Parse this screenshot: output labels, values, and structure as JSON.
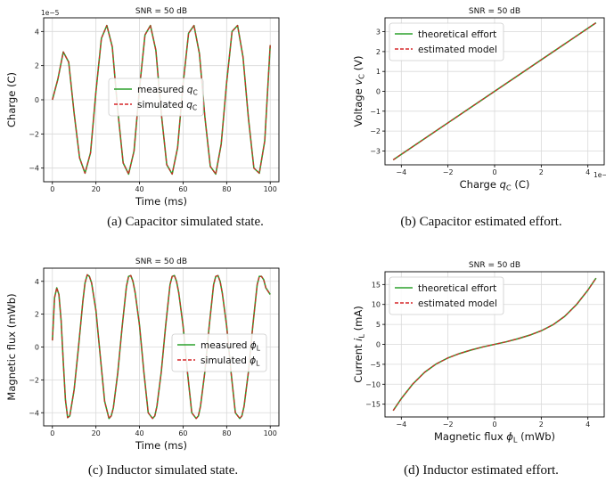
{
  "chart_data": [
    {
      "id": "a",
      "type": "line",
      "title": "SNR = 50 dB",
      "xlabel": "Time (ms)",
      "ylabel": "Charge (C)",
      "scale_note": "1e−5",
      "xlim": [
        -4,
        104
      ],
      "ylim": [
        -4.8,
        4.8
      ],
      "xticks": [
        0,
        20,
        40,
        60,
        80,
        100
      ],
      "yticks": [
        -4,
        -2,
        0,
        2,
        4
      ],
      "xtick_labels": [
        "0",
        "20",
        "40",
        "60",
        "80",
        "100"
      ],
      "ytick_labels": [
        "−4",
        "−2",
        "0",
        "2",
        "4"
      ],
      "grid": true,
      "legend_position": "center",
      "series": [
        {
          "name_base": "measured ",
          "name_sym": "q",
          "name_sub": "C",
          "color": "#2ca02c",
          "style": "solid",
          "x": [
            0,
            2.5,
            5,
            7.5,
            10,
            12.5,
            15,
            17.5,
            20,
            22.5,
            25,
            27.5,
            30,
            32.5,
            35,
            37.5,
            40,
            42.5,
            45,
            47.5,
            50,
            52.5,
            55,
            57.5,
            60,
            62.5,
            65,
            67.5,
            70,
            72.5,
            75,
            77.5,
            80,
            82.5,
            85,
            87.5,
            90,
            92.5,
            95,
            97.5,
            100
          ],
          "y": [
            0,
            1.2,
            2.8,
            2.2,
            -0.8,
            -3.4,
            -4.3,
            -3.1,
            0.5,
            3.6,
            4.35,
            3.1,
            -0.6,
            -3.7,
            -4.35,
            -3.0,
            0.7,
            3.8,
            4.35,
            2.9,
            -0.8,
            -3.8,
            -4.35,
            -2.8,
            0.9,
            3.9,
            4.35,
            2.7,
            -1.0,
            -3.9,
            -4.35,
            -2.6,
            1.0,
            4.0,
            4.35,
            2.5,
            -1.1,
            -4.0,
            -4.3,
            -2.4,
            3.2
          ]
        },
        {
          "name_base": "simulated ",
          "name_sym": "q",
          "name_sub": "C",
          "color": "#d62728",
          "style": "dashed",
          "same_as": 0
        }
      ]
    },
    {
      "id": "b",
      "type": "line",
      "title": "SNR = 50 dB",
      "xlabel_base": "Charge ",
      "xlabel_sym": "q",
      "xlabel_sub": "C",
      "xlabel_unit": " (C)",
      "ylabel_base": "Voltage ",
      "ylabel_sym": "v",
      "ylabel_sub": "C",
      "ylabel_unit": " (V)",
      "scale_note": "1e−5",
      "xlim": [
        -4.7,
        4.7
      ],
      "ylim": [
        -3.7,
        3.7
      ],
      "xticks": [
        -4,
        -2,
        0,
        2,
        4
      ],
      "yticks": [
        -3,
        -2,
        -1,
        0,
        1,
        2,
        3
      ],
      "xtick_labels": [
        "−4",
        "−2",
        "0",
        "2",
        "4"
      ],
      "ytick_labels": [
        "−3",
        "−2",
        "−1",
        "0",
        "1",
        "2",
        "3"
      ],
      "grid": true,
      "legend_position": "top-left",
      "series": [
        {
          "name": "theoretical effort",
          "color": "#2ca02c",
          "style": "solid",
          "x": [
            -4.35,
            4.35
          ],
          "y": [
            -3.45,
            3.45
          ]
        },
        {
          "name": "estimated model",
          "color": "#d62728",
          "style": "dashed",
          "x": [
            -4.35,
            4.35
          ],
          "y": [
            -3.45,
            3.45
          ]
        }
      ]
    },
    {
      "id": "c",
      "type": "line",
      "title": "SNR = 50 dB",
      "xlabel": "Time (ms)",
      "ylabel": "Magnetic flux (mWb)",
      "xlim": [
        -4,
        104
      ],
      "ylim": [
        -4.8,
        4.8
      ],
      "xticks": [
        0,
        20,
        40,
        60,
        80,
        100
      ],
      "yticks": [
        -4,
        -2,
        0,
        2,
        4
      ],
      "xtick_labels": [
        "0",
        "20",
        "40",
        "60",
        "80",
        "100"
      ],
      "ytick_labels": [
        "−4",
        "−2",
        "0",
        "2",
        "4"
      ],
      "grid": true,
      "legend_position": "center-right",
      "series": [
        {
          "name_base": "measured ",
          "name_sym": "ϕ",
          "name_sub": "L",
          "color": "#2ca02c",
          "style": "solid",
          "x": [
            0,
            1,
            2,
            3,
            4,
            5,
            6,
            7,
            8,
            10,
            12,
            14,
            15,
            16,
            17,
            18,
            20,
            22,
            24,
            26,
            27,
            28,
            30,
            32,
            34,
            35,
            36,
            37,
            38,
            40,
            42,
            44,
            46,
            47,
            48,
            50,
            52,
            54,
            55,
            56,
            57,
            58,
            60,
            62,
            64,
            66,
            67,
            68,
            70,
            72,
            74,
            75,
            76,
            77,
            78,
            80,
            82,
            84,
            86,
            87,
            88,
            90,
            92,
            94,
            95,
            96,
            97,
            98,
            100
          ],
          "y": [
            0.4,
            3.0,
            3.6,
            3.2,
            1.6,
            -0.9,
            -3.2,
            -4.3,
            -4.2,
            -2.6,
            0.0,
            2.8,
            3.9,
            4.4,
            4.3,
            3.9,
            2.2,
            -0.6,
            -3.3,
            -4.35,
            -4.2,
            -3.7,
            -1.6,
            1.2,
            3.7,
            4.3,
            4.35,
            4.0,
            3.3,
            1.3,
            -1.5,
            -4.0,
            -4.35,
            -4.2,
            -3.6,
            -1.5,
            1.3,
            3.8,
            4.3,
            4.35,
            4.0,
            3.3,
            1.3,
            -1.5,
            -4.0,
            -4.35,
            -4.2,
            -3.6,
            -1.5,
            1.3,
            3.8,
            4.3,
            4.35,
            4.0,
            3.3,
            1.3,
            -1.5,
            -4.0,
            -4.35,
            -4.2,
            -3.6,
            -1.5,
            1.3,
            3.8,
            4.3,
            4.3,
            4.1,
            3.6,
            3.2
          ]
        },
        {
          "name_base": "simulated ",
          "name_sym": "ϕ",
          "name_sub": "L",
          "color": "#d62728",
          "style": "dashed",
          "same_as": 0
        }
      ]
    },
    {
      "id": "d",
      "type": "line",
      "title": "SNR = 50 dB",
      "xlabel_base": "Magnetic flux ",
      "xlabel_sym": "ϕ",
      "xlabel_sub": "L",
      "xlabel_unit": " (mWb)",
      "ylabel_base": "Current ",
      "ylabel_sym": "i",
      "ylabel_sub": "L",
      "ylabel_unit": " (mA)",
      "xlim": [
        -4.7,
        4.7
      ],
      "ylim": [
        -18.2,
        18.2
      ],
      "xticks": [
        -4,
        -2,
        0,
        2,
        4
      ],
      "yticks": [
        -15,
        -10,
        -5,
        0,
        5,
        10,
        15
      ],
      "xtick_labels": [
        "−4",
        "−2",
        "0",
        "2",
        "4"
      ],
      "ytick_labels": [
        "−15",
        "−10",
        "−5",
        "0",
        "5",
        "10",
        "15"
      ],
      "grid": true,
      "legend_position": "top-left",
      "series": [
        {
          "name": "theoretical effort",
          "color": "#2ca02c",
          "style": "solid",
          "x": [
            -4.35,
            -4,
            -3.5,
            -3,
            -2.5,
            -2,
            -1.5,
            -1,
            -0.5,
            0,
            0.5,
            1,
            1.5,
            2,
            2.5,
            3,
            3.5,
            4,
            4.35
          ],
          "y": [
            -16.6,
            -13.6,
            -9.9,
            -7.0,
            -4.9,
            -3.4,
            -2.3,
            -1.4,
            -0.65,
            0,
            0.65,
            1.4,
            2.3,
            3.4,
            4.9,
            7.0,
            9.9,
            13.6,
            16.6
          ]
        },
        {
          "name": "estimated model",
          "color": "#d62728",
          "style": "dashed",
          "same_as": 0
        }
      ]
    }
  ],
  "captions": {
    "a": "(a) Capacitor simulated state.",
    "b": "(b) Capacitor estimated effort.",
    "c": "(c) Inductor simulated state.",
    "d": "(d) Inductor estimated effort."
  }
}
